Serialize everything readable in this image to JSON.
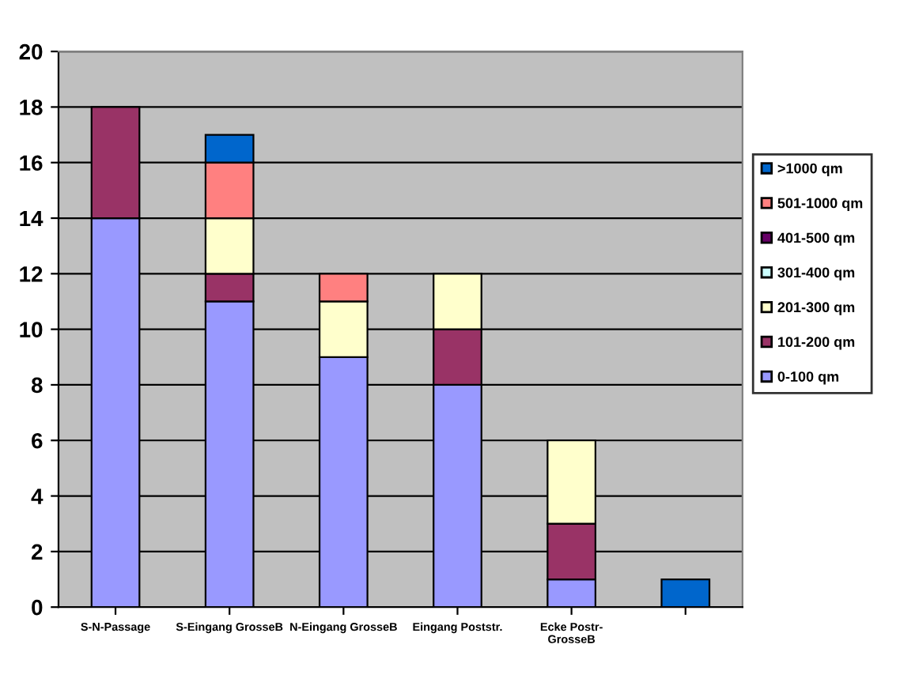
{
  "chart_data": {
    "type": "bar",
    "stacked": true,
    "categories": [
      "S-N-Passage",
      "S-Eingang GrosseB",
      "N-Eingang GrosseB",
      "Eingang Poststr.",
      "Ecke Postr-\nGrosseB",
      null
    ],
    "series": [
      {
        "name": "0-100 qm",
        "color": "#9999ff",
        "values": [
          14,
          11,
          9,
          8,
          1,
          null
        ]
      },
      {
        "name": "101-200 qm",
        "color": "#993366",
        "values": [
          4,
          1,
          null,
          2,
          2,
          null
        ]
      },
      {
        "name": "201-300 qm",
        "color": "#ffffcc",
        "values": [
          null,
          2,
          2,
          2,
          3,
          null
        ]
      },
      {
        "name": "301-400 qm",
        "color": "#ccffff",
        "values": [
          null,
          null,
          null,
          null,
          null,
          null
        ]
      },
      {
        "name": "401-500 qm",
        "color": "#660066",
        "values": [
          null,
          null,
          null,
          null,
          null,
          null
        ]
      },
      {
        "name": "501-1000 qm",
        "color": "#ff8080",
        "values": [
          null,
          2,
          1,
          null,
          null,
          null
        ]
      },
      {
        "name": ">1000 qm",
        "color": "#0066cc",
        "values": [
          null,
          1,
          null,
          null,
          null,
          1
        ]
      }
    ],
    "ylim": [
      0,
      20
    ],
    "yticks": [
      0,
      2,
      4,
      6,
      8,
      10,
      12,
      14,
      16,
      18,
      20
    ],
    "grid": "y",
    "legend": "right"
  }
}
